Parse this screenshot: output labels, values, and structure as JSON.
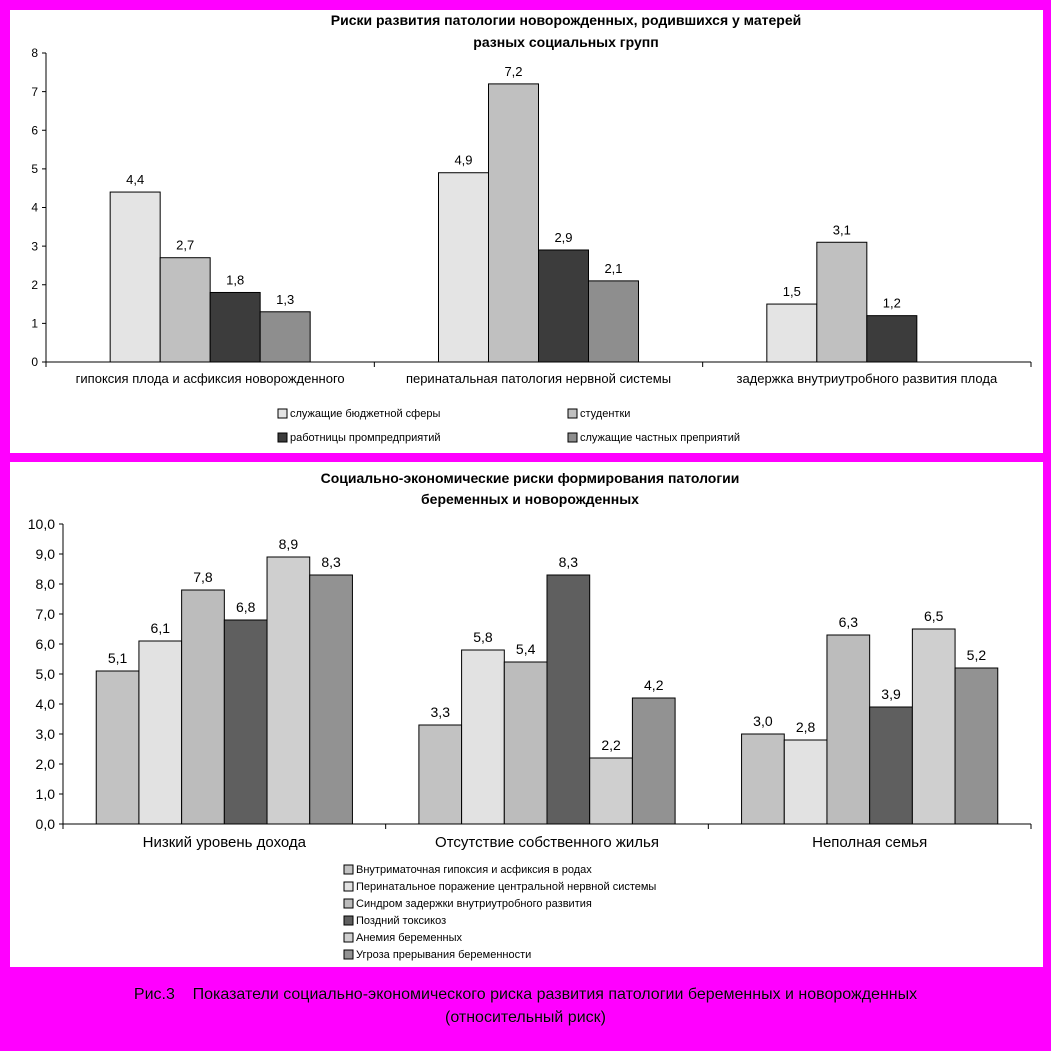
{
  "chart_data": [
    {
      "type": "bar",
      "title": [
        "Риски развития патологии новорожденных, родившихся у матерей",
        "разных социальных групп"
      ],
      "categories": [
        "гипоксия плода и асфиксия новорожденного",
        "перинатальная патология нервной системы",
        "задержка внутриутробного развития плода"
      ],
      "ylim": [
        0,
        8
      ],
      "yticks": [
        "0",
        "1",
        "2",
        "3",
        "4",
        "5",
        "6",
        "7",
        "8"
      ],
      "series": [
        {
          "name": "служащие бюджетной сферы",
          "values": [
            4.4,
            4.9,
            1.5
          ],
          "labels": [
            "4,4",
            "4,9",
            "1,5"
          ],
          "color": "#e4e4e4"
        },
        {
          "name": "студентки",
          "values": [
            2.7,
            7.2,
            3.1
          ],
          "labels": [
            "2,7",
            "7,2",
            "3,1"
          ],
          "color": "#c0c0c0"
        },
        {
          "name": "работницы промпредприятий",
          "values": [
            1.8,
            2.9,
            1.2
          ],
          "labels": [
            "1,8",
            "2,9",
            "1,2"
          ],
          "color": "#3c3c3c"
        },
        {
          "name": "служащие частных преприятий",
          "values": [
            1.3,
            2.1,
            null
          ],
          "labels": [
            "1,3",
            "2,1",
            ""
          ],
          "color": "#8e8e8e"
        }
      ],
      "grid": false,
      "legend": "bottom"
    },
    {
      "type": "bar",
      "title": [
        "Социально-экономические риски формирования патологии",
        "беременных и новорожденных"
      ],
      "categories": [
        "Низкий уровень дохода",
        "Отсутствие собственного жилья",
        "Неполная семья"
      ],
      "ylim": [
        0,
        10
      ],
      "yticks": [
        "0,0",
        "1,0",
        "2,0",
        "3,0",
        "4,0",
        "5,0",
        "6,0",
        "7,0",
        "8,0",
        "9,0",
        "10,0"
      ],
      "series": [
        {
          "name": "Внутриматочная гипоксия и асфиксия в родах",
          "values": [
            5.1,
            3.3,
            3.0
          ],
          "labels": [
            "5,1",
            "3,3",
            "3,0"
          ],
          "color": "#c2c2c2"
        },
        {
          "name": "Перинатальное поражение центральной нервной системы",
          "values": [
            6.1,
            5.8,
            2.8
          ],
          "labels": [
            "6,1",
            "5,8",
            "2,8"
          ],
          "color": "#e2e2e2"
        },
        {
          "name": "Синдром задержки внутриутробного развития",
          "values": [
            7.8,
            5.4,
            6.3
          ],
          "labels": [
            "7,8",
            "5,4",
            "6,3"
          ],
          "color": "#bcbcbc"
        },
        {
          "name": "Поздний токсикоз",
          "values": [
            6.8,
            8.3,
            3.9
          ],
          "labels": [
            "6,8",
            "8,3",
            "3,9"
          ],
          "color": "#5f5f5f"
        },
        {
          "name": "Анемия беременных",
          "values": [
            8.9,
            2.2,
            6.5
          ],
          "labels": [
            "8,9",
            "2,2",
            "6,5"
          ],
          "color": "#cfcfcf"
        },
        {
          "name": "Угроза прерывания беременности",
          "values": [
            8.3,
            4.2,
            5.2
          ],
          "labels": [
            "8,3",
            "4,2",
            "5,2"
          ],
          "color": "#929292"
        }
      ],
      "grid": false,
      "legend": "bottom"
    }
  ],
  "caption": {
    "line1": "Рис.3    Показатели социально-экономического риска развития патологии беременных и новорожденных",
    "line2": "(относительный риск)"
  },
  "colors": {
    "background": "#ff00ff",
    "panel": "#ffffff"
  }
}
